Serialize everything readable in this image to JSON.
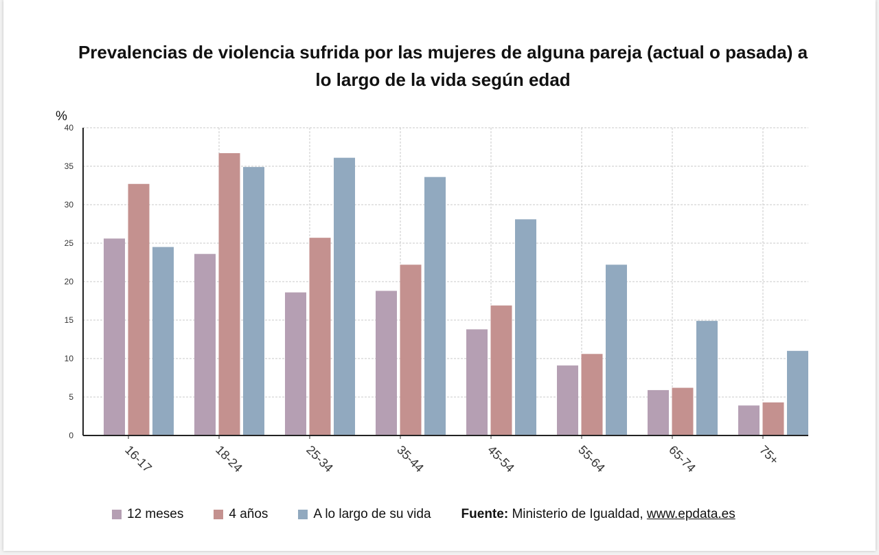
{
  "chart_data": {
    "type": "bar",
    "title": "Prevalencias de violencia sufrida por las mujeres de alguna pareja (actual o pasada) a lo largo de la vida según edad",
    "ylabel": "%",
    "xlabel": "",
    "ylim": [
      0,
      40
    ],
    "yticks": [
      0,
      5,
      10,
      15,
      20,
      25,
      30,
      35,
      40
    ],
    "grid": true,
    "legend_position": "bottom",
    "categories": [
      "16-17",
      "18-24",
      "25-34",
      "35-44",
      "45-54",
      "55-64",
      "65-74",
      "75+"
    ],
    "series": [
      {
        "name": "12 meses",
        "color": "#b59fb3",
        "values": [
          25.6,
          23.6,
          18.6,
          18.8,
          13.8,
          9.1,
          5.9,
          3.9
        ]
      },
      {
        "name": "4 años",
        "color": "#c4918f",
        "values": [
          32.7,
          36.7,
          25.7,
          22.2,
          16.9,
          10.6,
          6.2,
          4.3
        ]
      },
      {
        "name": "A lo largo de su vida",
        "color": "#91a9bf",
        "values": [
          24.5,
          34.9,
          36.1,
          33.6,
          28.1,
          22.2,
          14.9,
          11.0
        ]
      }
    ]
  },
  "source": {
    "label": "Fuente:",
    "text": "Ministerio de Igualdad,",
    "link": "www.epdata.es"
  }
}
